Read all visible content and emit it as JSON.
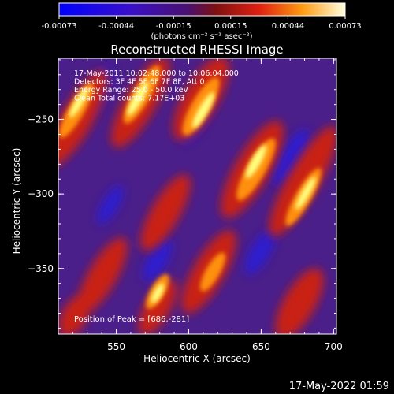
{
  "colorbar": {
    "ticks": [
      "-0.00073",
      "-0.00044",
      "-0.00015",
      "0.00015",
      "0.00044",
      "0.00073"
    ],
    "units": "(photons cm⁻² s⁻¹ asec⁻²)"
  },
  "image": {
    "title": "Reconstructed RHESSI Image",
    "info_lines": [
      "17-May-2011 10:02:48.000 to 10:06:04.000",
      "Detectors: 3F 4F 5F 6F 7F 8F, Att 0",
      "Energy Range: 25.0 - 50.0 keV",
      "Clean    Total counts: 7.17E+03"
    ],
    "peak_label": "Position of Peak = [686,-281]",
    "colors": {
      "min": "#1010ff",
      "mid": "#5a1a9a",
      "hot": "#e8401a",
      "max": "#ffffe0"
    }
  },
  "axes": {
    "xlabel": "Heliocentric X (arcsec)",
    "ylabel": "Heliocentric Y (arcsec)",
    "xrange": [
      510,
      702
    ],
    "yrange": [
      -394,
      -209
    ],
    "xticks": [
      "550",
      "600",
      "650",
      "700"
    ],
    "yticks": [
      "-250",
      "-300",
      "-350"
    ]
  },
  "footer": {
    "timestamp": "17-May-2022 01:59"
  }
}
